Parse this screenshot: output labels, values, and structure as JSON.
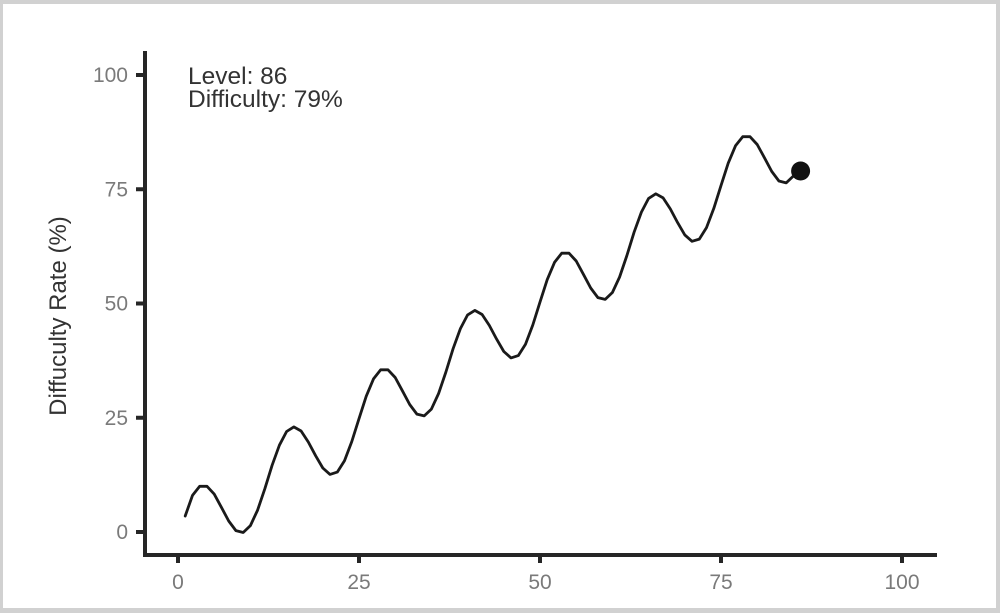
{
  "chart_data": {
    "type": "line",
    "title": "",
    "xlabel": "",
    "ylabel": "Diffuculty Rate (%)",
    "xlim": [
      0,
      100
    ],
    "ylim": [
      0,
      100
    ],
    "x_ticks": [
      "0",
      "25",
      "50",
      "75",
      "100"
    ],
    "x_tick_values": [
      0,
      25,
      50,
      75,
      100
    ],
    "y_ticks": [
      "0",
      "25",
      "50",
      "75",
      "100"
    ],
    "y_tick_values": [
      0,
      25,
      50,
      75,
      100
    ],
    "grid": false,
    "legend": false,
    "annotation": {
      "line1": "Level: 86",
      "line2": "Difficulty: 79%",
      "position": "top-left"
    },
    "series": [
      {
        "name": "difficulty-by-level",
        "points": [
          [
            1,
            3.5
          ],
          [
            2,
            8.0
          ],
          [
            3,
            10.0
          ],
          [
            4,
            10.0
          ],
          [
            5,
            8.3
          ],
          [
            6,
            5.4
          ],
          [
            7,
            2.4
          ],
          [
            8,
            0.3
          ],
          [
            9,
            -0.1
          ],
          [
            10,
            1.4
          ],
          [
            11,
            4.8
          ],
          [
            12,
            9.5
          ],
          [
            13,
            14.6
          ],
          [
            14,
            19.0
          ],
          [
            15,
            22.0
          ],
          [
            16,
            23.0
          ],
          [
            17,
            22.1
          ],
          [
            18,
            19.7
          ],
          [
            19,
            16.7
          ],
          [
            20,
            14.0
          ],
          [
            21,
            12.6
          ],
          [
            22,
            13.1
          ],
          [
            23,
            15.6
          ],
          [
            24,
            19.8
          ],
          [
            25,
            24.8
          ],
          [
            26,
            29.7
          ],
          [
            27,
            33.5
          ],
          [
            28,
            35.5
          ],
          [
            29,
            35.5
          ],
          [
            30,
            33.8
          ],
          [
            31,
            30.9
          ],
          [
            32,
            27.9
          ],
          [
            33,
            25.8
          ],
          [
            34,
            25.4
          ],
          [
            35,
            26.9
          ],
          [
            36,
            30.3
          ],
          [
            37,
            35.0
          ],
          [
            38,
            40.1
          ],
          [
            39,
            44.5
          ],
          [
            40,
            47.5
          ],
          [
            41,
            48.5
          ],
          [
            42,
            47.6
          ],
          [
            43,
            45.2
          ],
          [
            44,
            42.2
          ],
          [
            45,
            39.5
          ],
          [
            46,
            38.1
          ],
          [
            47,
            38.6
          ],
          [
            48,
            41.1
          ],
          [
            49,
            45.3
          ],
          [
            50,
            50.3
          ],
          [
            51,
            55.2
          ],
          [
            52,
            59.0
          ],
          [
            53,
            61.0
          ],
          [
            54,
            61.0
          ],
          [
            55,
            59.3
          ],
          [
            56,
            56.4
          ],
          [
            57,
            53.4
          ],
          [
            58,
            51.3
          ],
          [
            59,
            50.9
          ],
          [
            60,
            52.4
          ],
          [
            61,
            55.8
          ],
          [
            62,
            60.5
          ],
          [
            63,
            65.6
          ],
          [
            64,
            70.0
          ],
          [
            65,
            73.0
          ],
          [
            66,
            74.0
          ],
          [
            67,
            73.1
          ],
          [
            68,
            70.7
          ],
          [
            69,
            67.7
          ],
          [
            70,
            65.0
          ],
          [
            71,
            63.6
          ],
          [
            72,
            64.1
          ],
          [
            73,
            66.6
          ],
          [
            74,
            70.8
          ],
          [
            75,
            75.8
          ],
          [
            76,
            80.7
          ],
          [
            77,
            84.5
          ],
          [
            78,
            86.5
          ],
          [
            79,
            86.5
          ],
          [
            80,
            84.8
          ],
          [
            81,
            81.9
          ],
          [
            82,
            78.9
          ],
          [
            83,
            76.8
          ],
          [
            84,
            76.4
          ],
          [
            85,
            77.9
          ],
          [
            86,
            79.0
          ]
        ]
      }
    ],
    "endpoint": {
      "x": 86,
      "y": 79,
      "marker": "filled-circle"
    }
  },
  "colors": {
    "frame": "#d1d1d1",
    "panel": "#ffffff",
    "axis": "#262626",
    "tick_label": "#7a7a7a",
    "axis_title": "#333333",
    "annotation_text": "#333333",
    "line": "#1a1a1a",
    "dot": "#111111"
  }
}
